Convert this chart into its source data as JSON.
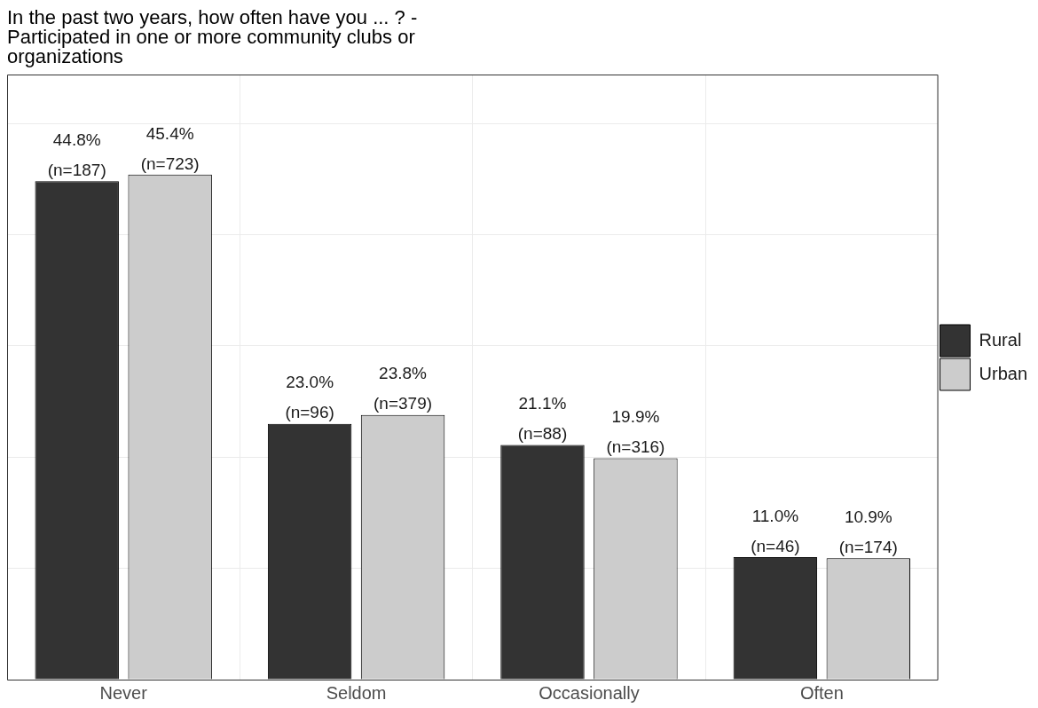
{
  "chart_data": {
    "type": "bar",
    "title": "In the past two years, how often have you ... ? -\nParticipated in one or more community clubs or\norganizations",
    "categories": [
      "Never",
      "Seldom",
      "Occasionally",
      "Often"
    ],
    "series": [
      {
        "name": "Rural",
        "color": "#333333",
        "values": [
          44.8,
          23.0,
          21.1,
          11.0
        ],
        "value_labels": [
          "44.8%\n(n=187)",
          "23.0%\n(n=96)",
          "21.1%\n(n=88)",
          "11.0%\n(n=46)"
        ]
      },
      {
        "name": "Urban",
        "color": "#cccccc",
        "values": [
          45.4,
          23.8,
          19.9,
          10.9
        ],
        "value_labels": [
          "45.4%\n(n=723)",
          "23.8%\n(n=379)",
          "19.9%\n(n=316)",
          "10.9%\n(n=174)"
        ]
      }
    ],
    "ylim": [
      0,
      54.4
    ],
    "yticks": [
      {
        "value": 0,
        "label": null
      },
      {
        "value": 10,
        "label": null
      },
      {
        "value": 20,
        "label": null
      },
      {
        "value": 30,
        "label": null
      },
      {
        "value": 40,
        "label": null
      },
      {
        "value": 50,
        "label": null
      }
    ],
    "tick_labels": "x",
    "grid": true,
    "legend": "right"
  }
}
